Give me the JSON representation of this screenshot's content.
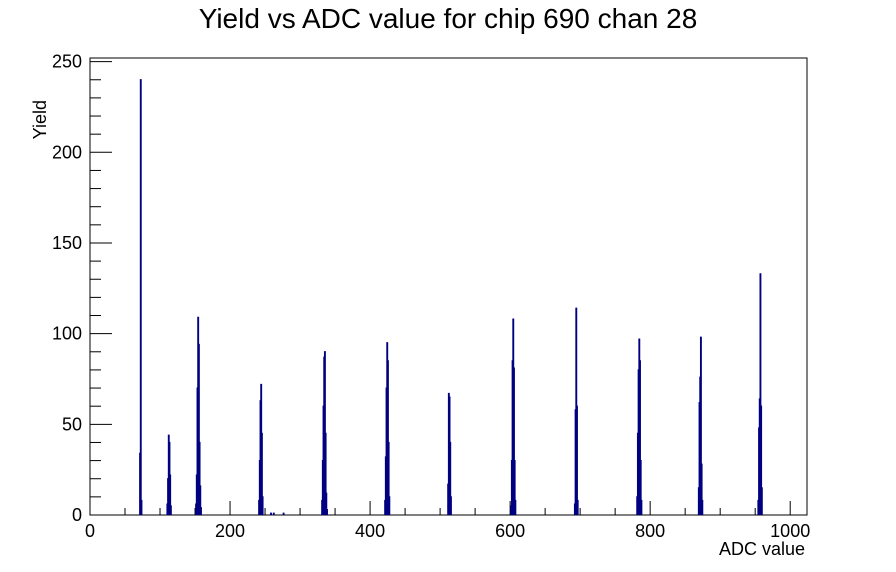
{
  "chart_data": {
    "type": "bar",
    "title": "Yield vs ADC value for chip 690 chan 28",
    "xlabel": "ADC value",
    "ylabel": "Yield",
    "xlim": [
      0,
      1024
    ],
    "ylim": [
      0,
      252
    ],
    "x_ticks": [
      0,
      200,
      400,
      600,
      800,
      1000
    ],
    "y_ticks": [
      0,
      50,
      100,
      150,
      200,
      250
    ],
    "grid": false,
    "line_color": "#000080",
    "bins": [
      {
        "x": 71,
        "y": 34
      },
      {
        "x": 72,
        "y": 240
      },
      {
        "x": 73,
        "y": 8
      },
      {
        "x": 110,
        "y": 6
      },
      {
        "x": 111,
        "y": 20
      },
      {
        "x": 112,
        "y": 44
      },
      {
        "x": 113,
        "y": 40
      },
      {
        "x": 114,
        "y": 22
      },
      {
        "x": 115,
        "y": 5
      },
      {
        "x": 151,
        "y": 6
      },
      {
        "x": 152,
        "y": 22
      },
      {
        "x": 153,
        "y": 70
      },
      {
        "x": 154,
        "y": 109
      },
      {
        "x": 155,
        "y": 94
      },
      {
        "x": 156,
        "y": 40
      },
      {
        "x": 157,
        "y": 16
      },
      {
        "x": 158,
        "y": 4
      },
      {
        "x": 241,
        "y": 8
      },
      {
        "x": 242,
        "y": 30
      },
      {
        "x": 243,
        "y": 63
      },
      {
        "x": 244,
        "y": 72
      },
      {
        "x": 245,
        "y": 45
      },
      {
        "x": 246,
        "y": 10
      },
      {
        "x": 258,
        "y": 1
      },
      {
        "x": 262,
        "y": 1
      },
      {
        "x": 276,
        "y": 1
      },
      {
        "x": 331,
        "y": 8
      },
      {
        "x": 332,
        "y": 30
      },
      {
        "x": 333,
        "y": 60
      },
      {
        "x": 334,
        "y": 87
      },
      {
        "x": 335,
        "y": 90
      },
      {
        "x": 336,
        "y": 45
      },
      {
        "x": 337,
        "y": 12
      },
      {
        "x": 338,
        "y": 3
      },
      {
        "x": 421,
        "y": 8
      },
      {
        "x": 422,
        "y": 32
      },
      {
        "x": 423,
        "y": 70
      },
      {
        "x": 424,
        "y": 95
      },
      {
        "x": 425,
        "y": 85
      },
      {
        "x": 426,
        "y": 40
      },
      {
        "x": 427,
        "y": 10
      },
      {
        "x": 511,
        "y": 17
      },
      {
        "x": 512,
        "y": 67
      },
      {
        "x": 513,
        "y": 65
      },
      {
        "x": 514,
        "y": 40
      },
      {
        "x": 515,
        "y": 10
      },
      {
        "x": 601,
        "y": 5
      },
      {
        "x": 602,
        "y": 30
      },
      {
        "x": 603,
        "y": 85
      },
      {
        "x": 604,
        "y": 108
      },
      {
        "x": 605,
        "y": 81
      },
      {
        "x": 606,
        "y": 30
      },
      {
        "x": 607,
        "y": 8
      },
      {
        "x": 692,
        "y": 6
      },
      {
        "x": 693,
        "y": 58
      },
      {
        "x": 694,
        "y": 114
      },
      {
        "x": 695,
        "y": 60
      },
      {
        "x": 696,
        "y": 8
      },
      {
        "x": 781,
        "y": 10
      },
      {
        "x": 782,
        "y": 45
      },
      {
        "x": 783,
        "y": 80
      },
      {
        "x": 784,
        "y": 97
      },
      {
        "x": 785,
        "y": 85
      },
      {
        "x": 786,
        "y": 30
      },
      {
        "x": 787,
        "y": 8
      },
      {
        "x": 869,
        "y": 15
      },
      {
        "x": 870,
        "y": 62
      },
      {
        "x": 871,
        "y": 76
      },
      {
        "x": 872,
        "y": 98
      },
      {
        "x": 873,
        "y": 28
      },
      {
        "x": 874,
        "y": 8
      },
      {
        "x": 954,
        "y": 8
      },
      {
        "x": 955,
        "y": 48
      },
      {
        "x": 956,
        "y": 64
      },
      {
        "x": 957,
        "y": 133
      },
      {
        "x": 958,
        "y": 60
      },
      {
        "x": 959,
        "y": 15
      }
    ]
  }
}
